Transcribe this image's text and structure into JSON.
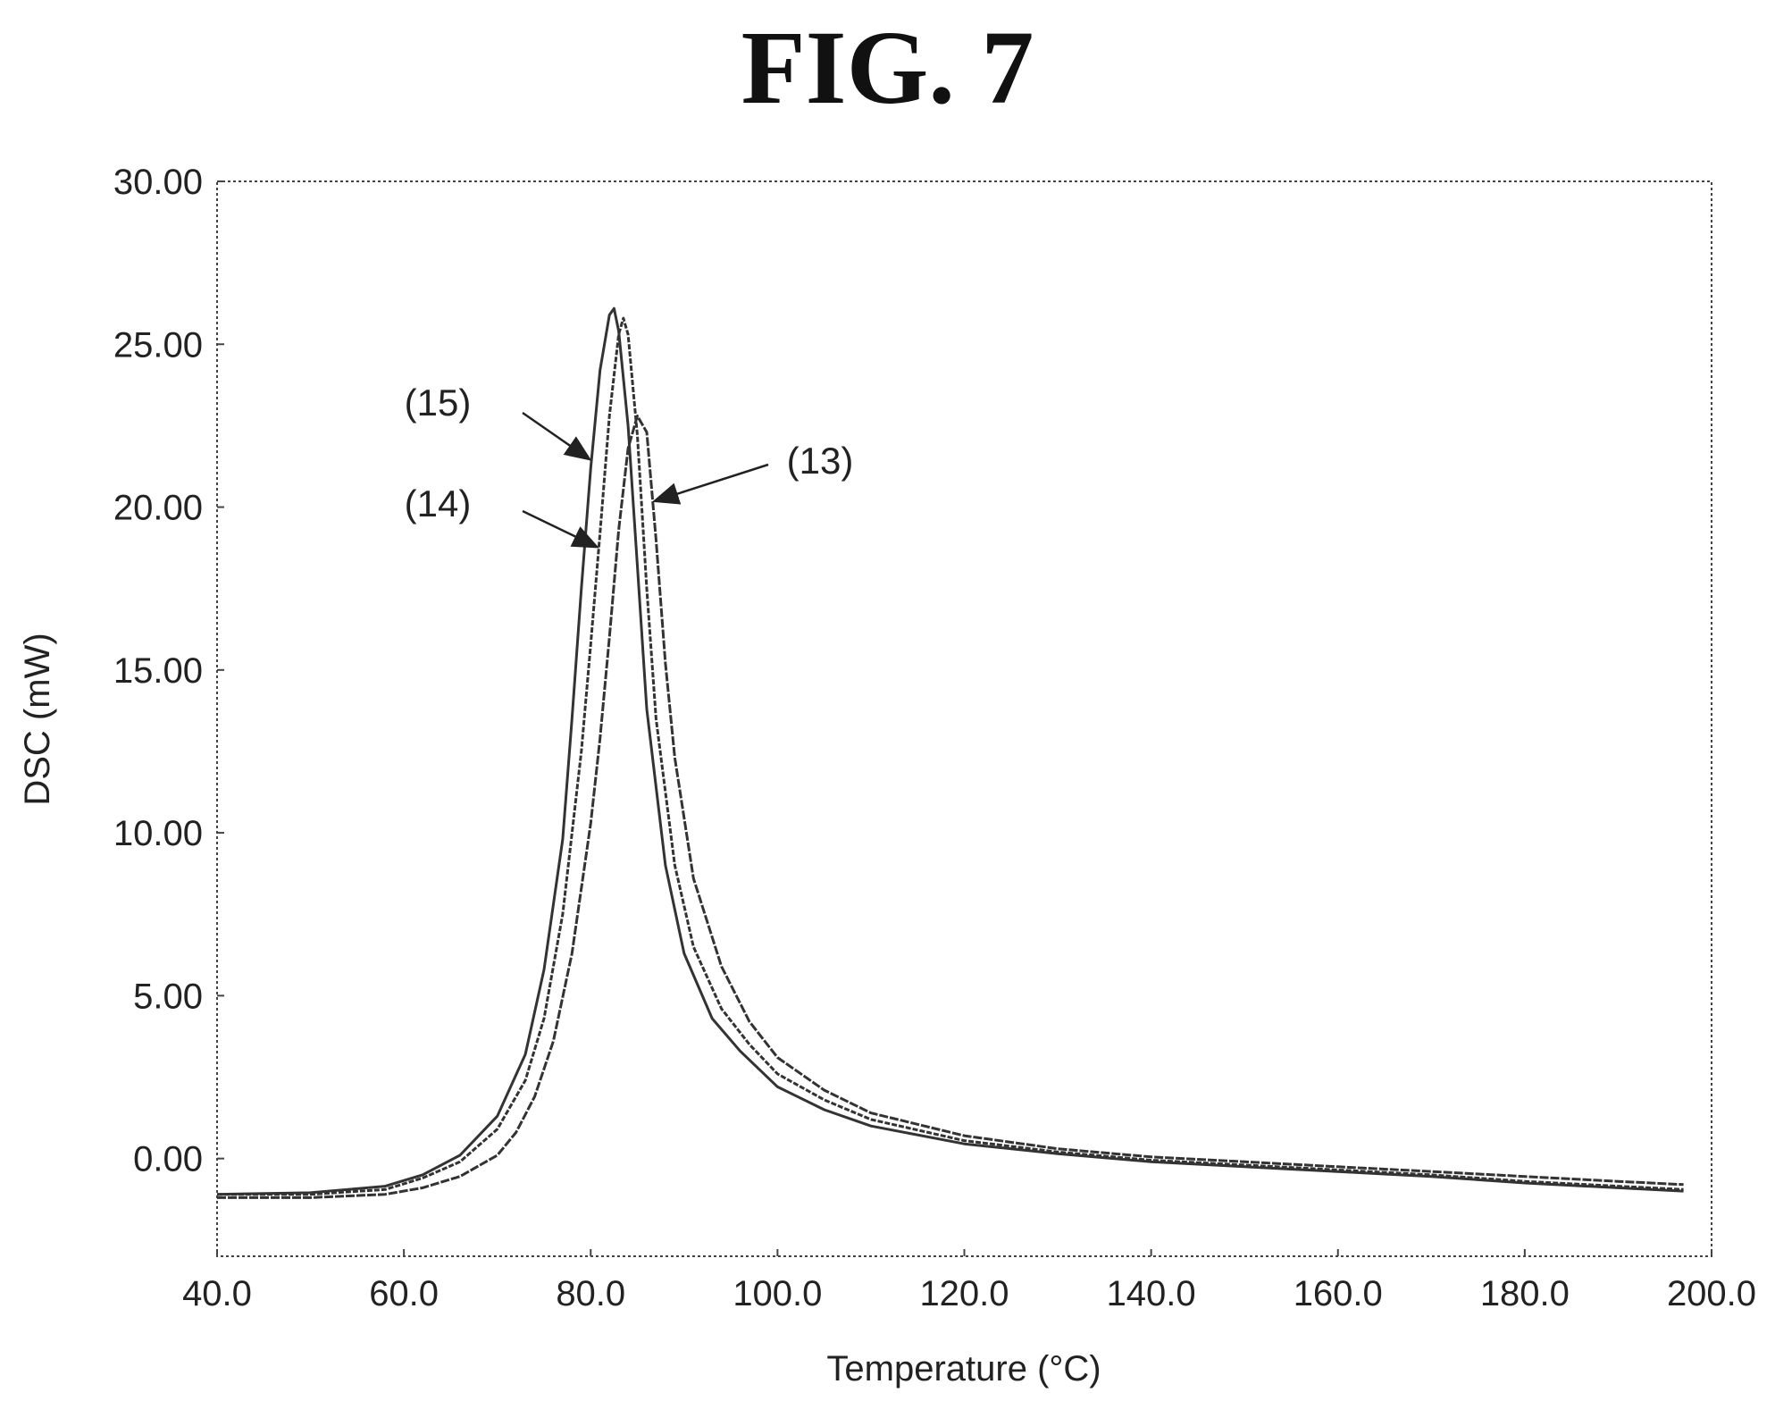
{
  "figure": {
    "title": "FIG. 7"
  },
  "chart_data": {
    "type": "line",
    "xlabel": "Temperature (°C)",
    "ylabel": "DSC (mW)",
    "xlim": [
      40,
      200
    ],
    "ylim": [
      -3,
      30
    ],
    "xticks": [
      "40.0",
      "60.0",
      "80.0",
      "100.0",
      "120.0",
      "140.0",
      "160.0",
      "180.0",
      "200.0"
    ],
    "yticks": [
      "0.00",
      "5.00",
      "10.00",
      "15.00",
      "20.00",
      "25.00",
      "30.00"
    ],
    "grid": false,
    "line_color": "#333333",
    "series": [
      {
        "name": "(15)",
        "x": [
          40,
          50,
          58,
          62,
          66,
          70,
          73,
          75,
          77,
          78,
          79,
          80,
          81,
          82,
          82.5,
          83,
          84,
          85,
          86,
          88,
          90,
          93,
          96,
          100,
          105,
          110,
          120,
          130,
          140,
          150,
          160,
          170,
          180,
          190,
          197
        ],
        "y": [
          -1.1,
          -1.05,
          -0.85,
          -0.5,
          0.1,
          1.3,
          3.2,
          5.8,
          9.8,
          13.5,
          17.5,
          21.2,
          24.2,
          25.9,
          26.1,
          25.4,
          22.5,
          18.2,
          13.8,
          9.0,
          6.3,
          4.3,
          3.3,
          2.2,
          1.5,
          1.0,
          0.45,
          0.15,
          -0.1,
          -0.25,
          -0.4,
          -0.55,
          -0.75,
          -0.9,
          -1.0
        ]
      },
      {
        "name": "(14)",
        "x": [
          40,
          50,
          58,
          62,
          66,
          70,
          73,
          75,
          77,
          79,
          80,
          81,
          82,
          83,
          83.5,
          84,
          85,
          86,
          87,
          89,
          91,
          94,
          97,
          100,
          105,
          110,
          120,
          130,
          140,
          150,
          160,
          170,
          180,
          190,
          197
        ],
        "y": [
          -1.1,
          -1.1,
          -0.95,
          -0.6,
          -0.1,
          0.9,
          2.4,
          4.3,
          7.5,
          12.5,
          15.8,
          19.2,
          22.8,
          25.3,
          25.8,
          25.3,
          22.2,
          17.5,
          13.5,
          9.0,
          6.5,
          4.6,
          3.5,
          2.6,
          1.8,
          1.2,
          0.55,
          0.2,
          -0.05,
          -0.2,
          -0.35,
          -0.5,
          -0.7,
          -0.85,
          -0.95
        ]
      },
      {
        "name": "(13)",
        "x": [
          40,
          50,
          58,
          62,
          66,
          70,
          72,
          74,
          76,
          78,
          80,
          81,
          82,
          83,
          84,
          85,
          86,
          87,
          88,
          89,
          91,
          94,
          97,
          100,
          105,
          110,
          120,
          130,
          140,
          150,
          160,
          170,
          180,
          190,
          197
        ],
        "y": [
          -1.2,
          -1.2,
          -1.1,
          -0.9,
          -0.55,
          0.1,
          0.8,
          1.9,
          3.6,
          6.3,
          10.3,
          12.9,
          16.0,
          19.3,
          21.8,
          22.8,
          22.3,
          19.0,
          15.2,
          12.3,
          8.6,
          5.9,
          4.2,
          3.1,
          2.1,
          1.4,
          0.7,
          0.3,
          0.05,
          -0.1,
          -0.25,
          -0.4,
          -0.55,
          -0.7,
          -0.8
        ]
      }
    ],
    "annotations": [
      {
        "text": "(15)",
        "points_to_series": "(15)"
      },
      {
        "text": "(14)",
        "points_to_series": "(14)"
      },
      {
        "text": "(13)",
        "points_to_series": "(13)"
      }
    ]
  }
}
